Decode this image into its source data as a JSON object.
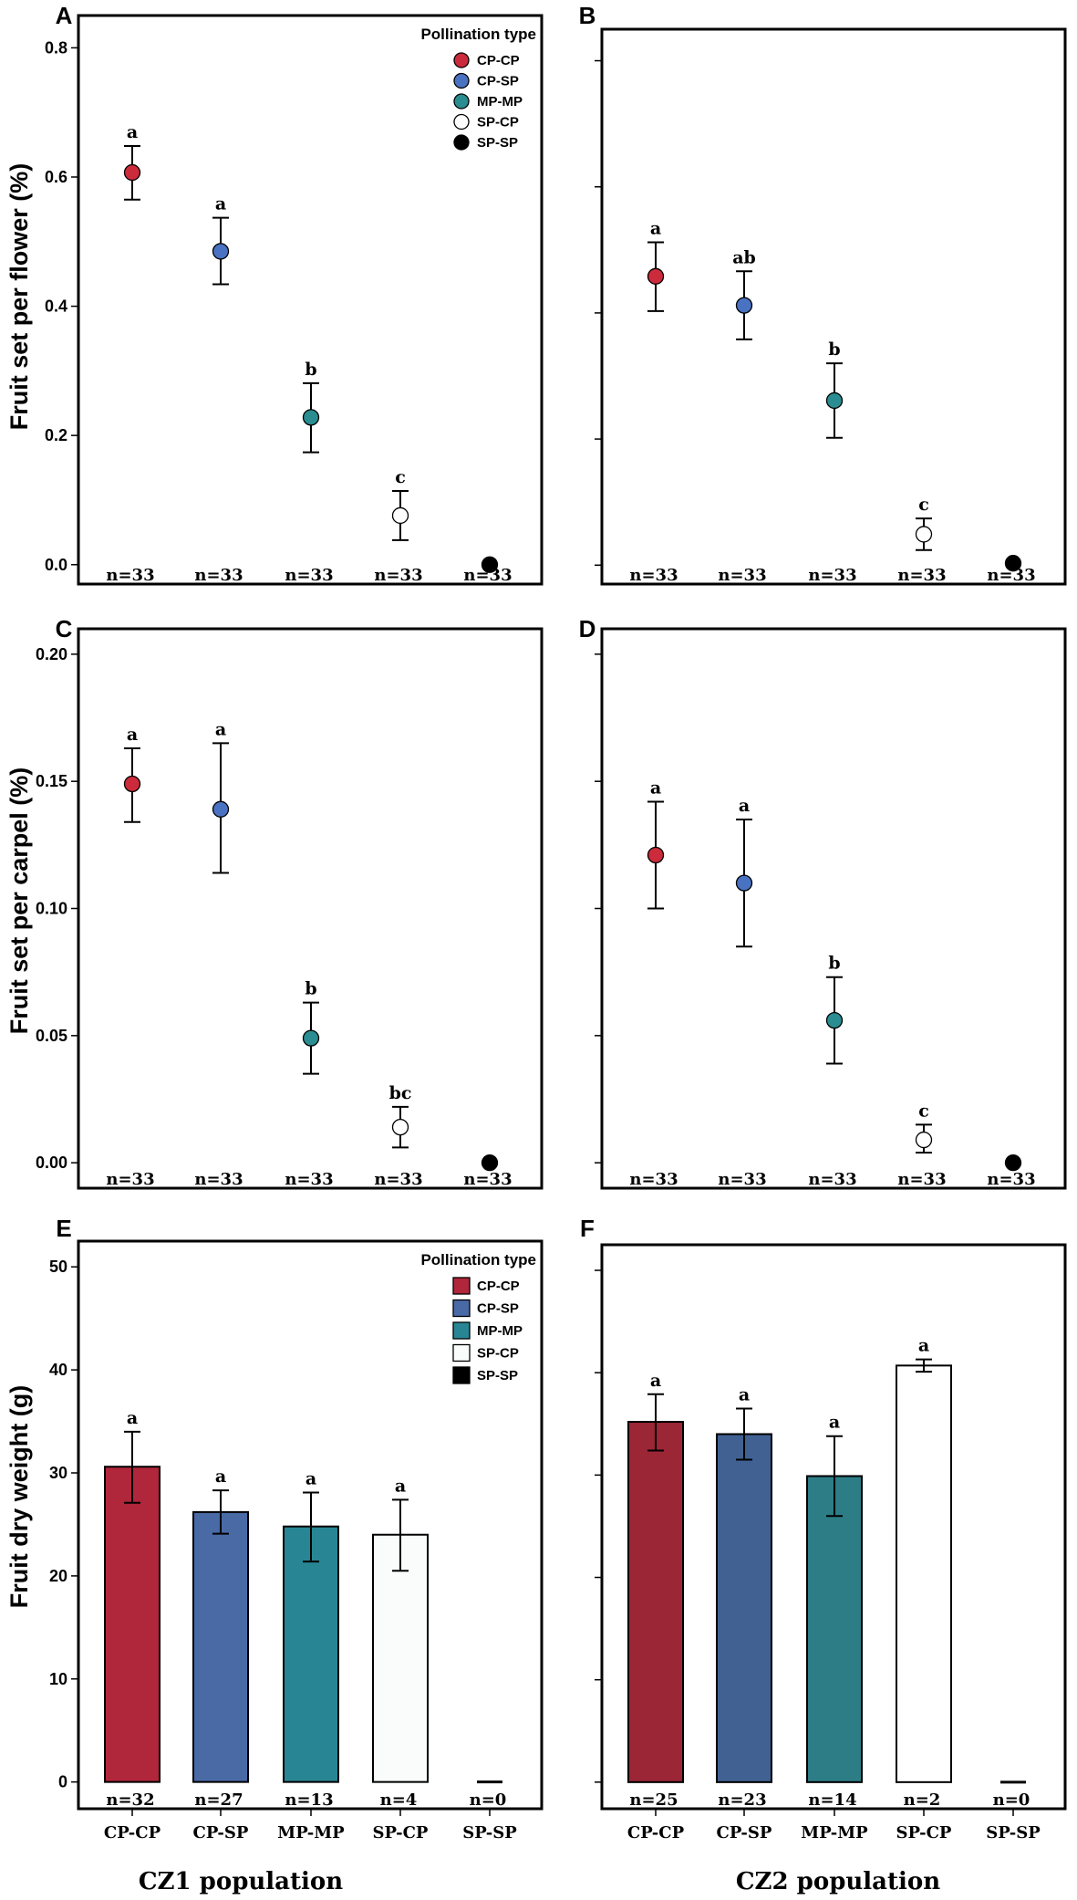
{
  "figure": {
    "y_labels": {
      "row1": "Fruit set per flower (%)",
      "row2": "Fruit set per carpel (%)",
      "row3": "Fruit dry weight (g)"
    },
    "populations": [
      "CZ1 population",
      "CZ2 population"
    ],
    "legend_title": "Pollination type"
  },
  "chart_data": [
    {
      "panel": "A",
      "type": "scatter",
      "population": "CZ1 population",
      "ylabel": "Fruit set per flower (%)",
      "ylim": [
        -0.03,
        0.85
      ],
      "yticks": [
        0.0,
        0.2,
        0.4,
        0.6,
        0.8
      ],
      "tick_decimals": 1,
      "categories": [
        "CP-CP",
        "CP-SP",
        "MP-MP",
        "SP-CP",
        "SP-SP"
      ],
      "values": [
        0.607,
        0.485,
        0.228,
        0.076,
        0.0
      ],
      "err_low": [
        0.565,
        0.434,
        0.174,
        0.038,
        0.0
      ],
      "err_high": [
        0.648,
        0.537,
        0.281,
        0.114,
        0.0
      ],
      "letters": [
        "a",
        "a",
        "b",
        "c",
        ""
      ],
      "n": [
        "n=33",
        "n=33",
        "n=33",
        "n=33",
        "n=33"
      ],
      "legend": true,
      "show_tick_labels": true,
      "show_x_labels": false
    },
    {
      "panel": "B",
      "type": "scatter",
      "population": "CZ2 population",
      "ylabel": "",
      "ylim": [
        -0.03,
        0.85
      ],
      "yticks": [
        0.0,
        0.2,
        0.4,
        0.6,
        0.8
      ],
      "tick_decimals": 1,
      "categories": [
        "CP-CP",
        "CP-SP",
        "MP-MP",
        "SP-CP",
        "SP-SP"
      ],
      "values": [
        0.458,
        0.412,
        0.261,
        0.049,
        0.003
      ],
      "err_low": [
        0.403,
        0.358,
        0.202,
        0.024,
        0.003
      ],
      "err_high": [
        0.512,
        0.466,
        0.32,
        0.074,
        0.003
      ],
      "letters": [
        "a",
        "ab",
        "b",
        "c",
        ""
      ],
      "n": [
        "n=33",
        "n=33",
        "n=33",
        "n=33",
        "n=33"
      ],
      "legend": false,
      "show_tick_labels": false,
      "show_x_labels": false
    },
    {
      "panel": "C",
      "type": "scatter",
      "population": "CZ1 population",
      "ylabel": "Fruit set per carpel (%)",
      "ylim": [
        -0.01,
        0.21
      ],
      "yticks": [
        0.0,
        0.05,
        0.1,
        0.15,
        0.2
      ],
      "tick_decimals": 2,
      "categories": [
        "CP-CP",
        "CP-SP",
        "MP-MP",
        "SP-CP",
        "SP-SP"
      ],
      "values": [
        0.149,
        0.139,
        0.049,
        0.014,
        0.0
      ],
      "err_low": [
        0.134,
        0.114,
        0.035,
        0.006,
        0.0
      ],
      "err_high": [
        0.163,
        0.165,
        0.063,
        0.022,
        0.0
      ],
      "letters": [
        "a",
        "a",
        "b",
        "bc",
        ""
      ],
      "n": [
        "n=33",
        "n=33",
        "n=33",
        "n=33",
        "n=33"
      ],
      "legend": false,
      "show_tick_labels": true,
      "show_x_labels": false
    },
    {
      "panel": "D",
      "type": "scatter",
      "population": "CZ2 population",
      "ylabel": "",
      "ylim": [
        -0.01,
        0.21
      ],
      "yticks": [
        0.0,
        0.05,
        0.1,
        0.15,
        0.2
      ],
      "tick_decimals": 2,
      "categories": [
        "CP-CP",
        "CP-SP",
        "MP-MP",
        "SP-CP",
        "SP-SP"
      ],
      "values": [
        0.121,
        0.11,
        0.056,
        0.009,
        0.0
      ],
      "err_low": [
        0.1,
        0.085,
        0.039,
        0.004,
        0.0
      ],
      "err_high": [
        0.142,
        0.135,
        0.073,
        0.015,
        0.0
      ],
      "letters": [
        "a",
        "a",
        "b",
        "c",
        ""
      ],
      "n": [
        "n=33",
        "n=33",
        "n=33",
        "n=33",
        "n=33"
      ],
      "legend": false,
      "show_tick_labels": false,
      "show_x_labels": false
    },
    {
      "panel": "E",
      "type": "bar",
      "population": "CZ1 population",
      "ylabel": "Fruit dry weight (g)",
      "ylim": [
        -2.6,
        52.5
      ],
      "yticks": [
        0,
        10,
        20,
        30,
        40,
        50
      ],
      "tick_decimals": 0,
      "categories": [
        "CP-CP",
        "CP-SP",
        "MP-MP",
        "SP-CP",
        "SP-SP"
      ],
      "values": [
        30.6,
        26.2,
        24.8,
        24.0,
        0.0
      ],
      "err_low": [
        27.1,
        24.1,
        21.4,
        20.5,
        0.0
      ],
      "err_high": [
        34.0,
        28.3,
        28.1,
        27.4,
        0.0
      ],
      "letters": [
        "a",
        "a",
        "a",
        "a",
        ""
      ],
      "n": [
        "n=32",
        "n=27",
        "n=13",
        "n=4",
        "n=0"
      ],
      "legend": true,
      "show_tick_labels": true,
      "show_x_labels": true
    },
    {
      "panel": "F",
      "type": "bar",
      "population": "CZ2 population",
      "ylabel": "",
      "ylim": [
        -2.6,
        52.5
      ],
      "yticks": [
        0,
        10,
        20,
        30,
        40,
        50
      ],
      "tick_decimals": 0,
      "categories": [
        "CP-CP",
        "CP-SP",
        "MP-MP",
        "SP-CP",
        "SP-SP"
      ],
      "values": [
        35.2,
        34.0,
        29.9,
        40.7,
        0.0
      ],
      "err_low": [
        32.4,
        31.5,
        26.0,
        40.1,
        0.0
      ],
      "err_high": [
        37.9,
        36.5,
        33.8,
        41.3,
        0.0
      ],
      "letters": [
        "a",
        "a",
        "a",
        "a",
        ""
      ],
      "n": [
        "n=25",
        "n=23",
        "n=14",
        "n=2",
        "n=0"
      ],
      "legend": false,
      "show_tick_labels": false,
      "show_x_labels": true
    }
  ],
  "colors": {
    "point": {
      "CP-CP": "#cc2b3c",
      "CP-SP": "#4a72c2",
      "MP-MP": "#2a8d91",
      "SP-CP": "#ffffff",
      "SP-SP": "#000000"
    },
    "bar_E": {
      "CP-CP": "#b0263b",
      "CP-SP": "#4a6aa6",
      "MP-MP": "#288694",
      "SP-CP": "#fafcfc",
      "SP-SP": "#000000"
    },
    "bar_F": {
      "CP-CP": "#9b2636",
      "CP-SP": "#406192",
      "MP-MP": "#2d7d86",
      "SP-CP": "#ffffff",
      "SP-SP": "#000000"
    }
  }
}
